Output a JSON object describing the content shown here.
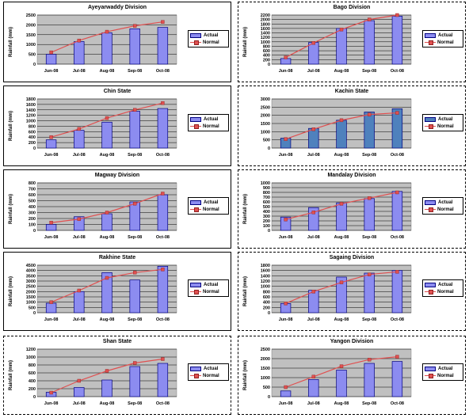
{
  "colors": {
    "bar_fill": "#8c8cf0",
    "bar_stroke": "#000080",
    "bar_fill_alt": "#4f81bd",
    "line": "#e05050",
    "plot_bg": "#c0c0c0",
    "grid": "#000000"
  },
  "chart_data": [
    {
      "type": "bar",
      "title": "Ayeyarwaddy Division",
      "ylabel": "Rainfall (mm)",
      "categories": [
        "Jun-08",
        "Jul-08",
        "Aug-08",
        "Sep-08",
        "Oct-08"
      ],
      "ylim": [
        0,
        2500
      ],
      "yticks": [
        "0",
        "500",
        "1000",
        "1500",
        "2000",
        "2500"
      ],
      "series": [
        {
          "name": "Actual",
          "kind": "bar",
          "values": [
            500,
            1150,
            1600,
            1800,
            1870
          ]
        },
        {
          "name": "Normal",
          "kind": "line",
          "values": [
            600,
            1200,
            1650,
            1950,
            2150
          ]
        }
      ],
      "legend": "right"
    },
    {
      "type": "bar",
      "title": "Bago Division",
      "ylabel": "Rainfall (mm)",
      "categories": [
        "Jun-08",
        "Jul-08",
        "Aug-08",
        "Sep-08",
        "Oct-08"
      ],
      "ylim": [
        0,
        2200
      ],
      "yticks": [
        "0",
        "200",
        "400",
        "600",
        "800",
        "1000",
        "1200",
        "1400",
        "1600",
        "1800",
        "2000",
        "2200"
      ],
      "series": [
        {
          "name": "Actual",
          "kind": "bar",
          "values": [
            250,
            970,
            1600,
            1950,
            2150
          ]
        },
        {
          "name": "Normal",
          "kind": "line",
          "values": [
            300,
            950,
            1550,
            2000,
            2200
          ]
        }
      ],
      "legend": "right"
    },
    {
      "type": "bar",
      "title": "Chin State",
      "ylabel": "Rainfall (mm)",
      "categories": [
        "Jun-08",
        "Jul-08",
        "Aug-08",
        "Sep-08",
        "Oct-08"
      ],
      "ylim": [
        0,
        1800
      ],
      "yticks": [
        "0",
        "200",
        "400",
        "600",
        "800",
        "1000",
        "1200",
        "1400",
        "1600",
        "1800"
      ],
      "series": [
        {
          "name": "Actual",
          "kind": "bar",
          "values": [
            300,
            650,
            950,
            1350,
            1450
          ]
        },
        {
          "name": "Normal",
          "kind": "line",
          "values": [
            400,
            700,
            1100,
            1400,
            1650
          ]
        }
      ],
      "legend": "right"
    },
    {
      "type": "bar",
      "title": "Kachin State",
      "ylabel": "",
      "categories": [
        "Jun-08",
        "Jul-08",
        "Aug-08",
        "Sep-08",
        "Oct-08"
      ],
      "ylim": [
        0,
        3000
      ],
      "yticks": [
        "0",
        "500",
        "1000",
        "1500",
        "2000",
        "2500",
        "3000"
      ],
      "series": [
        {
          "name": "Actual",
          "kind": "bar",
          "values": [
            600,
            1200,
            1700,
            2200,
            2400
          ]
        },
        {
          "name": "Normal",
          "kind": "line",
          "values": [
            550,
            1150,
            1700,
            2050,
            2150
          ]
        }
      ],
      "legend": "right"
    },
    {
      "type": "bar",
      "title": "Magway Division",
      "ylabel": "Rainfall (mm)",
      "categories": [
        "Jun-08",
        "Jul-08",
        "Aug-08",
        "Sep-08",
        "Oct-08"
      ],
      "ylim": [
        0,
        800
      ],
      "yticks": [
        "0",
        "100",
        "200",
        "300",
        "400",
        "500",
        "600",
        "700",
        "800"
      ],
      "series": [
        {
          "name": "Actual",
          "kind": "bar",
          "values": [
            100,
            230,
            280,
            480,
            600
          ]
        },
        {
          "name": "Normal",
          "kind": "line",
          "values": [
            130,
            190,
            300,
            450,
            620
          ]
        }
      ],
      "legend": "right"
    },
    {
      "type": "bar",
      "title": "Mandalay Division",
      "ylabel": "Rainfall (mm)",
      "categories": [
        "Jun-08",
        "Jul-08",
        "Aug-08",
        "Sep-08",
        "Oct-08"
      ],
      "ylim": [
        0,
        1000
      ],
      "yticks": [
        "0",
        "100",
        "200",
        "300",
        "400",
        "500",
        "600",
        "700",
        "800",
        "900",
        "1000"
      ],
      "series": [
        {
          "name": "Actual",
          "kind": "bar",
          "values": [
            280,
            480,
            580,
            670,
            820
          ]
        },
        {
          "name": "Normal",
          "kind": "line",
          "values": [
            230,
            380,
            560,
            680,
            800
          ]
        }
      ],
      "legend": "right"
    },
    {
      "type": "bar",
      "title": "Rakhine State",
      "ylabel": "Rainfall (mm)",
      "categories": [
        "Jun-08",
        "Jul-08",
        "Aug-08",
        "Sep-08",
        "Oct-08"
      ],
      "ylim": [
        0,
        4500
      ],
      "yticks": [
        "0",
        "500",
        "1000",
        "1500",
        "2000",
        "2500",
        "3000",
        "3500",
        "4000",
        "4500"
      ],
      "series": [
        {
          "name": "Actual",
          "kind": "bar",
          "values": [
            900,
            2000,
            3800,
            3100,
            4400
          ]
        },
        {
          "name": "Normal",
          "kind": "line",
          "values": [
            1000,
            2100,
            3300,
            3800,
            4100
          ]
        }
      ],
      "legend": "right"
    },
    {
      "type": "bar",
      "title": "Sagaing Division",
      "ylabel": "Rainfall (mm)",
      "categories": [
        "Jun-08",
        "Jul-08",
        "Aug-08",
        "Sep-08",
        "Oct-08"
      ],
      "ylim": [
        0,
        1800
      ],
      "yticks": [
        "0",
        "200",
        "400",
        "600",
        "800",
        "1000",
        "1200",
        "1400",
        "1600",
        "1800"
      ],
      "series": [
        {
          "name": "Actual",
          "kind": "bar",
          "values": [
            350,
            850,
            1350,
            1500,
            1600
          ]
        },
        {
          "name": "Normal",
          "kind": "line",
          "values": [
            350,
            800,
            1150,
            1450,
            1550
          ]
        }
      ],
      "legend": "right"
    },
    {
      "type": "bar",
      "title": "Shan State",
      "ylabel": "Rainfall (mm)",
      "categories": [
        "Jun-08",
        "Jul-08",
        "Aug-08",
        "Sep-08",
        "Oct-08"
      ],
      "ylim": [
        0,
        1200
      ],
      "yticks": [
        "0",
        "200",
        "400",
        "600",
        "800",
        "1000",
        "1200"
      ],
      "series": [
        {
          "name": "Actual",
          "kind": "bar",
          "values": [
            110,
            230,
            420,
            760,
            840
          ]
        },
        {
          "name": "Normal",
          "kind": "line",
          "values": [
            100,
            400,
            650,
            850,
            950
          ]
        }
      ],
      "legend": "right"
    },
    {
      "type": "bar",
      "title": "Yangon Division",
      "ylabel": "Rainfall (mm)",
      "categories": [
        "Jun-08",
        "Jul-08",
        "Aug-08",
        "Sep-08",
        "Oct-08"
      ],
      "ylim": [
        0,
        2500
      ],
      "yticks": [
        "0",
        "500",
        "1000",
        "1500",
        "2000",
        "2500"
      ],
      "series": [
        {
          "name": "Actual",
          "kind": "bar",
          "values": [
            300,
            900,
            1400,
            1750,
            1850
          ]
        },
        {
          "name": "Normal",
          "kind": "line",
          "values": [
            500,
            1050,
            1600,
            1950,
            2100
          ]
        }
      ],
      "legend": "right"
    }
  ]
}
